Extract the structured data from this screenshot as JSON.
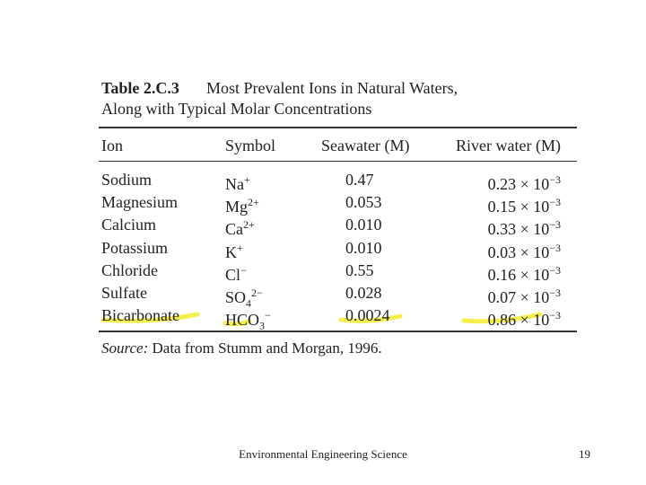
{
  "table": {
    "label": "Table 2.C.3",
    "title_lines": [
      "Most Prevalent Ions in Natural Waters,",
      "Along with Typical Molar Concentrations"
    ],
    "headers": [
      "Ion",
      "Symbol",
      "Seawater (M)",
      "River water (M)"
    ],
    "rows": [
      {
        "ion": "Sodium",
        "symbol": {
          "base": "Na",
          "sub": "",
          "sup": "+"
        },
        "seawater": "0.47",
        "river": {
          "mantissa": "0.23 × 10",
          "exp": "−3"
        }
      },
      {
        "ion": "Magnesium",
        "symbol": {
          "base": "Mg",
          "sub": "",
          "sup": "2+"
        },
        "seawater": "0.053",
        "river": {
          "mantissa": "0.15 × 10",
          "exp": "−3"
        }
      },
      {
        "ion": "Calcium",
        "symbol": {
          "base": "Ca",
          "sub": "",
          "sup": "2+"
        },
        "seawater": "0.010",
        "river": {
          "mantissa": "0.33 × 10",
          "exp": "−3"
        }
      },
      {
        "ion": "Potassium",
        "symbol": {
          "base": "K",
          "sub": "",
          "sup": "+"
        },
        "seawater": "0.010",
        "river": {
          "mantissa": "0.03 × 10",
          "exp": "−3"
        }
      },
      {
        "ion": "Chloride",
        "symbol": {
          "base": "Cl",
          "sub": "",
          "sup": "−"
        },
        "seawater": "0.55",
        "river": {
          "mantissa": "0.16 × 10",
          "exp": "−3"
        }
      },
      {
        "ion": "Sulfate",
        "symbol": {
          "base": "SO",
          "sub": "4",
          "sup": "2−"
        },
        "seawater": "0.028",
        "river": {
          "mantissa": "0.07 × 10",
          "exp": "−3"
        }
      },
      {
        "ion": "Bicarbonate",
        "symbol": {
          "base": "HCO",
          "sub": "3",
          "sup": "−"
        },
        "seawater": "0.0024",
        "river": {
          "mantissa": "0.86 × 10",
          "exp": "−3"
        }
      }
    ],
    "source_label": "Source:",
    "source_text": "Data from Stumm and Morgan, 1996."
  },
  "footer": {
    "title": "Environmental Engineering Science",
    "page": "19"
  }
}
